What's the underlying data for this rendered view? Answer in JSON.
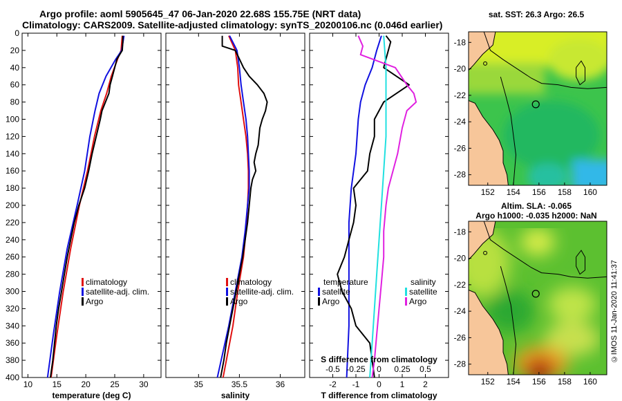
{
  "header": {
    "line1": "Argo profile: aoml 5905645_47 06-Jan-2020 22.68S 155.75E (NRT data)",
    "line2": "Climatology: CARS2009. Satellite-adjusted climatology: synTS_20200106.nc (0.046d earlier)"
  },
  "footer": {
    "credit": "©IMOS 11-Jan-2020 11:41:37"
  },
  "colors": {
    "climatology": "#e01010",
    "satellite": "#1010e0",
    "argo": "#000000",
    "s_diff": "#e020e0",
    "s_sat": "#20e0e0",
    "land": "#f7c69a"
  },
  "chart_data": [
    {
      "type": "line",
      "id": "temperature",
      "xlabel": "temperature (deg C)",
      "xlim": [
        9,
        33
      ],
      "xticks": [
        10,
        15,
        20,
        25,
        30
      ],
      "ylim": [
        0,
        400
      ],
      "yticks": [
        0,
        20,
        40,
        60,
        80,
        100,
        120,
        140,
        160,
        180,
        200,
        220,
        240,
        260,
        280,
        300,
        320,
        340,
        360,
        380,
        400
      ],
      "legend": [
        "climatology",
        "satellite-adj. clim.",
        "Argo"
      ],
      "series": [
        {
          "name": "climatology",
          "color": "#e01010",
          "depth": [
            3,
            20,
            30,
            50,
            70,
            90,
            120,
            160,
            200,
            250,
            300,
            350,
            400
          ],
          "values": [
            26.3,
            26.1,
            25.5,
            24.4,
            23.6,
            22.6,
            21.5,
            20.3,
            18.9,
            17.4,
            16.1,
            15.0,
            14.0
          ]
        },
        {
          "name": "satellite-adj. clim.",
          "color": "#1010e0",
          "depth": [
            3,
            20,
            30,
            50,
            70,
            90,
            120,
            160,
            200,
            250,
            300,
            350,
            400
          ],
          "values": [
            26.6,
            26.2,
            25.2,
            23.5,
            22.3,
            21.6,
            20.7,
            19.8,
            18.5,
            16.8,
            15.5,
            14.4,
            13.4
          ]
        },
        {
          "name": "Argo",
          "color": "#000000",
          "depth": [
            3,
            10,
            20,
            30,
            40,
            50,
            60,
            70,
            80,
            90,
            100,
            120,
            140,
            160,
            180,
            200,
            220,
            240,
            260,
            280,
            300,
            320,
            340,
            360,
            380,
            400
          ],
          "values": [
            26.4,
            26.4,
            26.3,
            25.4,
            25.0,
            24.6,
            24.2,
            24.0,
            23.4,
            22.8,
            22.5,
            21.8,
            21.1,
            20.5,
            19.8,
            18.8,
            18.0,
            17.4,
            16.8,
            16.3,
            15.8,
            15.3,
            14.9,
            14.6,
            14.3,
            13.9
          ]
        }
      ]
    },
    {
      "type": "line",
      "id": "salinity",
      "xlabel": "salinity",
      "xlim": [
        34.6,
        36.3
      ],
      "xticks": [
        35,
        35.5,
        36
      ],
      "xticklabels": [
        "35",
        "35.5",
        "36"
      ],
      "ylim": [
        0,
        400
      ],
      "legend": [
        "climatology",
        "satellite-adj. clim.",
        "Argo"
      ],
      "series": [
        {
          "name": "climatology",
          "color": "#e01010",
          "depth": [
            3,
            20,
            40,
            60,
            80,
            100,
            120,
            140,
            160,
            180,
            200,
            230,
            260,
            300,
            340,
            400
          ],
          "values": [
            35.37,
            35.45,
            35.48,
            35.49,
            35.52,
            35.55,
            35.58,
            35.6,
            35.61,
            35.61,
            35.6,
            35.58,
            35.55,
            35.48,
            35.42,
            35.3
          ]
        },
        {
          "name": "satellite-adj. clim.",
          "color": "#1010e0",
          "depth": [
            3,
            20,
            40,
            60,
            80,
            100,
            120,
            140,
            160,
            180,
            200,
            230,
            260,
            300,
            340,
            400
          ],
          "values": [
            35.38,
            35.47,
            35.5,
            35.52,
            35.55,
            35.58,
            35.6,
            35.61,
            35.62,
            35.62,
            35.6,
            35.57,
            35.53,
            35.45,
            35.37,
            35.23
          ]
        },
        {
          "name": "Argo",
          "color": "#000000",
          "depth": [
            3,
            15,
            20,
            30,
            40,
            50,
            60,
            70,
            80,
            90,
            100,
            110,
            120,
            130,
            140,
            150,
            160,
            170,
            180,
            200,
            220,
            240,
            260,
            280,
            300,
            320,
            340,
            360,
            380,
            400
          ],
          "values": [
            35.29,
            35.29,
            35.45,
            35.5,
            35.55,
            35.62,
            35.72,
            35.8,
            35.84,
            35.82,
            35.78,
            35.75,
            35.74,
            35.73,
            35.7,
            35.68,
            35.7,
            35.66,
            35.64,
            35.62,
            35.6,
            35.57,
            35.54,
            35.5,
            35.46,
            35.42,
            35.38,
            35.34,
            35.31,
            35.27
          ]
        }
      ]
    },
    {
      "type": "line",
      "id": "differences",
      "xlabel": "T difference from climatology",
      "top_axis_label": "S difference from climatology",
      "xlim": [
        -3,
        3
      ],
      "xticks": [
        -2,
        -1,
        0,
        1,
        2
      ],
      "top_ticklabels": [
        "-0.5",
        "-0.25",
        "0",
        "0.25",
        "0.5"
      ],
      "ylim": [
        0,
        400
      ],
      "legend_temperature": {
        "title": "temperature",
        "items": [
          "satellite",
          "Argo"
        ]
      },
      "legend_salinity": {
        "title": "salinity",
        "items": [
          "satellite",
          "Argo"
        ]
      },
      "series": [
        {
          "name": "temperature satellite",
          "color": "#1010e0",
          "depth": [
            3,
            20,
            40,
            60,
            80,
            100,
            140,
            180,
            220,
            260,
            300,
            340,
            400
          ],
          "values": [
            0.1,
            -0.1,
            -0.3,
            -0.6,
            -0.8,
            -0.9,
            -1.0,
            -1.2,
            -1.3,
            -1.3,
            -1.3,
            -1.3,
            -1.4
          ]
        },
        {
          "name": "temperature Argo",
          "color": "#000000",
          "depth": [
            3,
            10,
            20,
            30,
            40,
            60,
            80,
            100,
            120,
            140,
            160,
            180,
            200,
            220,
            240,
            260,
            280,
            300,
            320,
            340,
            360,
            380,
            400
          ],
          "values": [
            0.3,
            0.5,
            0.4,
            0.3,
            0.2,
            1.3,
            0.2,
            -0.2,
            -0.2,
            -0.4,
            -0.5,
            -1.1,
            -1.0,
            -1.1,
            -1.3,
            -1.5,
            -1.8,
            -1.6,
            -1.2,
            -1.0,
            -0.4,
            -0.3,
            -0.2
          ]
        },
        {
          "name": "salinity satellite",
          "color": "#20e0e0",
          "depth": [
            3,
            40,
            80,
            120,
            160,
            200,
            240,
            280,
            320,
            360,
            400
          ],
          "values": [
            0.2,
            0.3,
            0.3,
            0.3,
            0.2,
            0.1,
            0.0,
            -0.1,
            -0.2,
            -0.3,
            -0.4
          ]
        },
        {
          "name": "salinity Argo",
          "color": "#e020e0",
          "depth": [
            3,
            15,
            25,
            40,
            60,
            70,
            80,
            90,
            110,
            140,
            160,
            180,
            200,
            230,
            260,
            290,
            320,
            350,
            380,
            400
          ],
          "values": [
            -0.9,
            -0.7,
            -0.8,
            0.7,
            1.2,
            1.5,
            1.6,
            1.2,
            1.0,
            0.8,
            0.6,
            0.4,
            0.3,
            0.2,
            0.2,
            0.1,
            0.0,
            -0.1,
            -0.2,
            -0.3
          ]
        }
      ]
    },
    {
      "type": "heatmap",
      "id": "sst_map",
      "title": "sat. SST: 26.3 Argo: 26.5",
      "xlim": [
        150.5,
        161.3
      ],
      "ylim": [
        -28.8,
        -17.2
      ],
      "xticks": [
        152,
        154,
        156,
        158,
        160
      ],
      "yticks": [
        -18,
        -20,
        -22,
        -24,
        -26,
        -28
      ],
      "argo_position": {
        "lon": 155.75,
        "lat": -22.68
      }
    },
    {
      "type": "heatmap",
      "id": "sla_map",
      "title": "Altim. SLA: -0.065",
      "subtitle": "Argo h1000: -0.035 h2000: NaN",
      "xlim": [
        150.5,
        161.3
      ],
      "ylim": [
        -28.8,
        -17.2
      ],
      "xticks": [
        152,
        154,
        156,
        158,
        160
      ],
      "yticks": [
        -18,
        -20,
        -22,
        -24,
        -26,
        -28
      ],
      "argo_position": {
        "lon": 155.75,
        "lat": -22.68
      }
    }
  ]
}
